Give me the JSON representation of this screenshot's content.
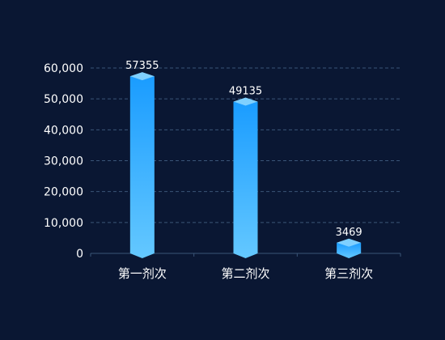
{
  "chart_data": {
    "type": "bar",
    "categories": [
      "第一剂次",
      "第二剂次",
      "第三剂次"
    ],
    "values": [
      57355,
      49135,
      3469
    ],
    "ylim": [
      0,
      60000
    ],
    "yticks": [
      "0",
      "10,000",
      "20,000",
      "30,000",
      "40,000",
      "50,000",
      "60,000"
    ],
    "grid": true,
    "legend": "none",
    "colors": {
      "background": "#0a1733",
      "bar_top": "#1a9cff",
      "bar_bottom": "#64c8ff",
      "cap": "#7fd0ff",
      "grid": "#3a5577",
      "text": "#ffffff"
    }
  }
}
